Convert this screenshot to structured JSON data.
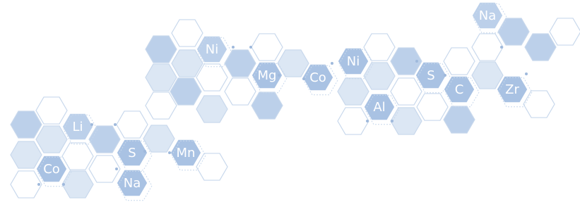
{
  "elements": [
    "Na",
    "Ni",
    "Mg",
    "Co",
    "Ni",
    "S",
    "C",
    "Zr",
    "Al",
    "Li",
    "S",
    "Mn",
    "Co",
    "Na"
  ]
}
